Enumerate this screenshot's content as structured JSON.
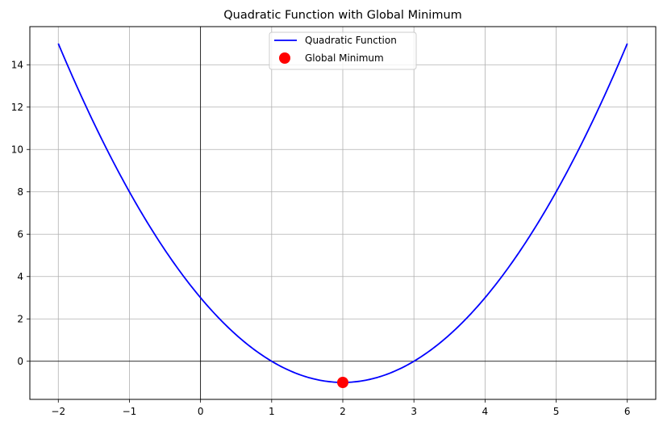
{
  "chart_data": {
    "type": "line",
    "title": "Quadratic Function with Global Minimum",
    "xlabel": "",
    "ylabel": "",
    "xlim": [
      -2.4,
      6.4
    ],
    "ylim": [
      -1.8,
      15.8
    ],
    "xticks": [
      -2,
      -1,
      0,
      1,
      2,
      3,
      4,
      5,
      6
    ],
    "xtick_labels": [
      "−2",
      "−1",
      "0",
      "1",
      "2",
      "3",
      "4",
      "5",
      "6"
    ],
    "yticks": [
      0,
      2,
      4,
      6,
      8,
      10,
      12,
      14
    ],
    "ytick_labels": [
      "0",
      "2",
      "4",
      "6",
      "8",
      "10",
      "12",
      "14"
    ],
    "grid": true,
    "reference_lines": {
      "x": 0,
      "y": 0
    },
    "legend_position": "top-center",
    "series": [
      {
        "name": "Quadratic Function",
        "kind": "line",
        "color": "#0000ff",
        "x": [
          -2,
          -1.5,
          -1,
          -0.5,
          0,
          0.5,
          1,
          1.5,
          2,
          2.5,
          3,
          3.5,
          4,
          4.5,
          5,
          5.5,
          6
        ],
        "y": [
          15,
          11.25,
          8,
          5.25,
          3,
          1.25,
          0,
          -0.75,
          -1,
          -0.75,
          0,
          1.25,
          3,
          5.25,
          8,
          11.25,
          15
        ]
      },
      {
        "name": "Global Minimum",
        "kind": "scatter",
        "color": "#ff0000",
        "x": [
          2
        ],
        "y": [
          -1
        ]
      }
    ]
  }
}
